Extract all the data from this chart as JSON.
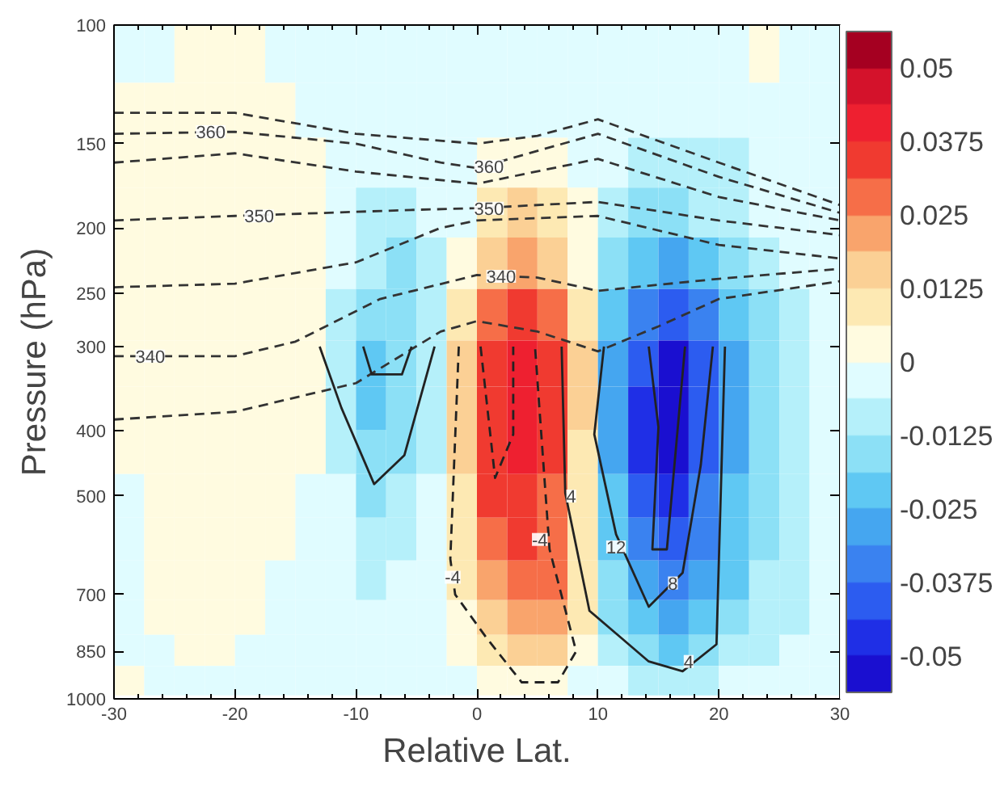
{
  "chart_data": {
    "type": "heatmap",
    "xlabel": "Relative Lat.",
    "ylabel": "Pressure (hPa)",
    "x": [
      -28.75,
      -26.25,
      -23.75,
      -21.25,
      -18.75,
      -16.25,
      -13.75,
      -11.25,
      -8.75,
      -6.25,
      -3.75,
      -1.25,
      1.25,
      3.75,
      6.25,
      8.75,
      11.25,
      13.75,
      16.25,
      18.75,
      21.25,
      23.75,
      26.25,
      28.75
    ],
    "y": [
      110,
      135,
      160,
      190,
      225,
      270,
      320,
      370,
      430,
      500,
      580,
      670,
      760,
      850,
      940
    ],
    "cells": [
      [
        -0.003,
        -0.003,
        0.003,
        0.003,
        0.003,
        -0.003,
        -0.003,
        -0.003,
        -0.003,
        -0.003,
        -0.003,
        -0.003,
        -0.003,
        -0.003,
        -0.003,
        -0.003,
        -0.003,
        -0.003,
        -0.003,
        -0.003,
        -0.003,
        0.003,
        -0.003,
        -0.003
      ],
      [
        0.003,
        0.003,
        0.003,
        0.003,
        0.003,
        0.003,
        -0.003,
        -0.003,
        -0.003,
        -0.003,
        -0.003,
        -0.003,
        -0.003,
        -0.003,
        -0.003,
        -0.003,
        -0.003,
        -0.003,
        -0.003,
        -0.003,
        -0.003,
        -0.003,
        -0.003,
        -0.003
      ],
      [
        0.003,
        0.003,
        0.003,
        0.003,
        0.003,
        0.003,
        0.003,
        -0.003,
        -0.003,
        -0.003,
        -0.003,
        -0.003,
        0.003,
        0.003,
        0.003,
        -0.003,
        -0.003,
        -0.009,
        -0.009,
        -0.009,
        -0.009,
        -0.003,
        -0.003,
        -0.003
      ],
      [
        0.003,
        0.003,
        0.003,
        0.003,
        0.003,
        0.003,
        0.003,
        -0.003,
        -0.009,
        -0.009,
        -0.003,
        -0.003,
        0.009,
        0.016,
        0.009,
        0.003,
        -0.009,
        -0.016,
        -0.016,
        -0.009,
        -0.009,
        -0.003,
        -0.003,
        -0.003
      ],
      [
        0.003,
        0.003,
        0.003,
        0.003,
        0.003,
        0.003,
        0.003,
        -0.003,
        -0.009,
        -0.016,
        -0.009,
        0.003,
        0.016,
        0.022,
        0.016,
        0.003,
        -0.016,
        -0.022,
        -0.028,
        -0.022,
        -0.016,
        -0.009,
        -0.003,
        -0.003
      ],
      [
        0.003,
        0.003,
        0.003,
        0.003,
        0.003,
        0.003,
        0.003,
        -0.009,
        -0.016,
        -0.016,
        -0.009,
        0.009,
        0.028,
        0.034,
        0.028,
        0.009,
        -0.022,
        -0.034,
        -0.041,
        -0.034,
        -0.022,
        -0.016,
        -0.009,
        -0.003
      ],
      [
        0.003,
        0.003,
        0.003,
        0.003,
        0.003,
        0.003,
        0.003,
        -0.009,
        -0.022,
        -0.016,
        -0.009,
        0.016,
        0.034,
        0.041,
        0.034,
        0.016,
        -0.028,
        -0.041,
        -0.053,
        -0.041,
        -0.028,
        -0.016,
        -0.009,
        -0.003
      ],
      [
        0.003,
        0.003,
        0.003,
        0.003,
        0.003,
        0.003,
        0.003,
        -0.009,
        -0.022,
        -0.016,
        -0.009,
        0.016,
        0.034,
        0.041,
        0.034,
        0.016,
        -0.028,
        -0.047,
        -0.053,
        -0.041,
        -0.028,
        -0.016,
        -0.009,
        -0.003
      ],
      [
        0.003,
        0.003,
        0.003,
        0.003,
        0.003,
        0.003,
        0.003,
        -0.009,
        -0.016,
        -0.016,
        -0.009,
        0.016,
        0.034,
        0.041,
        0.034,
        0.009,
        -0.028,
        -0.047,
        -0.053,
        -0.041,
        -0.028,
        -0.016,
        -0.009,
        -0.003
      ],
      [
        -0.003,
        0.003,
        0.003,
        0.003,
        0.003,
        0.003,
        -0.003,
        -0.003,
        -0.016,
        -0.009,
        -0.003,
        0.009,
        0.034,
        0.034,
        0.028,
        0.009,
        -0.022,
        -0.041,
        -0.047,
        -0.034,
        -0.022,
        -0.016,
        -0.009,
        -0.003
      ],
      [
        -0.003,
        0.003,
        0.003,
        0.003,
        0.003,
        0.003,
        -0.003,
        -0.003,
        -0.009,
        -0.009,
        -0.003,
        0.009,
        0.028,
        0.034,
        0.028,
        0.009,
        -0.022,
        -0.034,
        -0.041,
        -0.034,
        -0.022,
        -0.016,
        -0.009,
        -0.003
      ],
      [
        -0.003,
        0.003,
        0.003,
        0.003,
        0.003,
        -0.003,
        -0.003,
        -0.003,
        -0.009,
        -0.003,
        -0.003,
        0.009,
        0.022,
        0.028,
        0.028,
        0.009,
        -0.016,
        -0.028,
        -0.034,
        -0.028,
        -0.022,
        -0.009,
        -0.009,
        -0.003
      ],
      [
        -0.003,
        0.003,
        0.003,
        0.003,
        0.003,
        -0.003,
        -0.003,
        -0.003,
        -0.003,
        -0.003,
        -0.003,
        0.003,
        0.016,
        0.022,
        0.022,
        0.009,
        -0.016,
        -0.022,
        -0.028,
        -0.022,
        -0.016,
        -0.009,
        -0.009,
        -0.003
      ],
      [
        -0.003,
        -0.003,
        0.003,
        0.003,
        -0.003,
        -0.003,
        -0.003,
        -0.003,
        -0.003,
        -0.003,
        -0.003,
        0.003,
        0.009,
        0.016,
        0.016,
        0.003,
        -0.009,
        -0.016,
        -0.022,
        -0.016,
        -0.009,
        -0.009,
        -0.003,
        -0.003
      ],
      [
        0.003,
        -0.003,
        -0.003,
        -0.003,
        -0.003,
        -0.003,
        -0.003,
        -0.003,
        -0.003,
        -0.003,
        -0.003,
        -0.003,
        0.003,
        0.003,
        0.003,
        -0.003,
        -0.003,
        -0.009,
        -0.009,
        -0.009,
        -0.003,
        -0.003,
        -0.003,
        -0.003
      ]
    ],
    "clim": [
      -0.05625,
      0.05625
    ],
    "cticks": [
      -0.05,
      -0.0375,
      -0.025,
      -0.0125,
      0,
      0.0125,
      0.025,
      0.0375,
      0.05
    ],
    "colors": [
      "#1a0fd0",
      "#1f2fe6",
      "#2c5cf0",
      "#3a82f0",
      "#45a6f0",
      "#5fc8f3",
      "#8ce0f6",
      "#b5f0fa",
      "#e0fcff",
      "#fffbe0",
      "#fde9b3",
      "#fbd095",
      "#f9a46c",
      "#f66e48",
      "#f03a30",
      "#ee2030",
      "#d4122b",
      "#a50021"
    ],
    "log": "y",
    "xlim": [
      -30,
      30
    ],
    "ylim": [
      1000,
      100
    ],
    "xticks": [
      -30,
      -20,
      -10,
      0,
      10,
      20,
      30
    ],
    "yticks": [
      100,
      150,
      200,
      250,
      300,
      400,
      500,
      700,
      850,
      1000
    ],
    "grid": false,
    "series": [
      {
        "type": "line",
        "color": "#333333",
        "line_style": "dashed",
        "x": [
          -30,
          -20,
          -10,
          0,
          5,
          10,
          20,
          30
        ],
        "values": [
          135,
          135,
          145,
          150,
          146,
          138,
          160,
          185
        ]
      },
      {
        "type": "line",
        "color": "#333333",
        "line_style": "dashed",
        "x": [
          -30,
          -20,
          -10,
          -3,
          0,
          10,
          20,
          30
        ],
        "values": [
          145,
          144,
          150,
          160,
          163,
          145,
          168,
          190
        ]
      },
      {
        "type": "line",
        "color": "#333333",
        "line_style": "dashed",
        "x": [
          -30,
          -20,
          -10,
          0,
          10,
          20,
          30
        ],
        "values": [
          160,
          155,
          165,
          172,
          158,
          180,
          195
        ]
      },
      {
        "type": "line",
        "color": "#333333",
        "line_style": "dashed",
        "x": [
          -30,
          -20,
          -5,
          0,
          10,
          20,
          30
        ],
        "values": [
          195,
          192,
          188,
          187,
          183,
          195,
          205
        ]
      },
      {
        "type": "line",
        "color": "#333333",
        "line_style": "dashed",
        "x": [
          -30,
          -20,
          -10,
          -3,
          0,
          10,
          20,
          30
        ],
        "values": [
          245,
          242,
          225,
          200,
          195,
          192,
          212,
          222
        ]
      },
      {
        "type": "line",
        "color": "#333333",
        "line_style": "dashed",
        "x": [
          -30,
          -20,
          -15,
          -8,
          0,
          5,
          10,
          20,
          30
        ],
        "values": [
          310,
          310,
          295,
          255,
          235,
          237,
          248,
          238,
          230
        ]
      },
      {
        "type": "line",
        "color": "#333333",
        "line_style": "dashed",
        "x": [
          -30,
          -20,
          -10,
          -3,
          0,
          5,
          10,
          15,
          20,
          30
        ],
        "values": [
          385,
          375,
          340,
          285,
          275,
          285,
          305,
          280,
          255,
          240
        ]
      },
      {
        "type": "line",
        "color": "#222222",
        "line_style": "solid",
        "x": [
          -13,
          -11.2,
          -8.5,
          -6,
          -3.5
        ],
        "values": [
          300,
          370,
          480,
          435,
          300
        ]
      },
      {
        "type": "line",
        "color": "#222222",
        "line_style": "solid",
        "x": [
          -9.4,
          -8.7,
          -6.2,
          -5.4
        ],
        "values": [
          300,
          330,
          330,
          300
        ]
      },
      {
        "type": "line",
        "color": "#222222",
        "line_style": "dashed",
        "x": [
          0.3,
          1.5,
          3,
          3
        ],
        "values": [
          300,
          470,
          405,
          300
        ]
      },
      {
        "type": "line",
        "color": "#222222",
        "line_style": "dashed",
        "x": [
          -1.5,
          -2.2,
          -1.8,
          0.75,
          3.7,
          6.7,
          8.2,
          6,
          4.8
        ],
        "values": [
          300,
          620,
          700,
          810,
          945,
          945,
          850,
          600,
          300
        ]
      },
      {
        "type": "line",
        "color": "#222222",
        "line_style": "solid",
        "x": [
          14.2,
          15,
          14.5,
          15.7,
          17.2
        ],
        "values": [
          300,
          395,
          600,
          600,
          300
        ]
      },
      {
        "type": "line",
        "color": "#222222",
        "line_style": "solid",
        "x": [
          10.5,
          9.7,
          11.5,
          14.2,
          17,
          18.5,
          19.5
        ],
        "values": [
          300,
          405,
          570,
          730,
          650,
          450,
          300
        ]
      },
      {
        "type": "line",
        "color": "#222222",
        "line_style": "solid",
        "x": [
          7,
          7.3,
          9.3,
          14.2,
          17,
          19.8,
          20.5
        ],
        "values": [
          300,
          495,
          740,
          880,
          910,
          830,
          300
        ]
      }
    ],
    "annotations": [
      {
        "text": "360",
        "x": -22,
        "y": 144
      },
      {
        "text": "360",
        "x": 1,
        "y": 162
      },
      {
        "text": "350",
        "x": -18,
        "y": 192
      },
      {
        "text": "350",
        "x": 1,
        "y": 187
      },
      {
        "text": "340",
        "x": -27,
        "y": 310
      },
      {
        "text": "340",
        "x": 2,
        "y": 236
      },
      {
        "text": "-4",
        "x": -2,
        "y": 660
      },
      {
        "text": "-4",
        "x": 5.2,
        "y": 580
      },
      {
        "text": "4",
        "x": 7.8,
        "y": 500
      },
      {
        "text": "4",
        "x": 17.5,
        "y": 880
      },
      {
        "text": "12",
        "x": 11.5,
        "y": 595
      },
      {
        "text": "8",
        "x": 16.2,
        "y": 673
      }
    ]
  }
}
